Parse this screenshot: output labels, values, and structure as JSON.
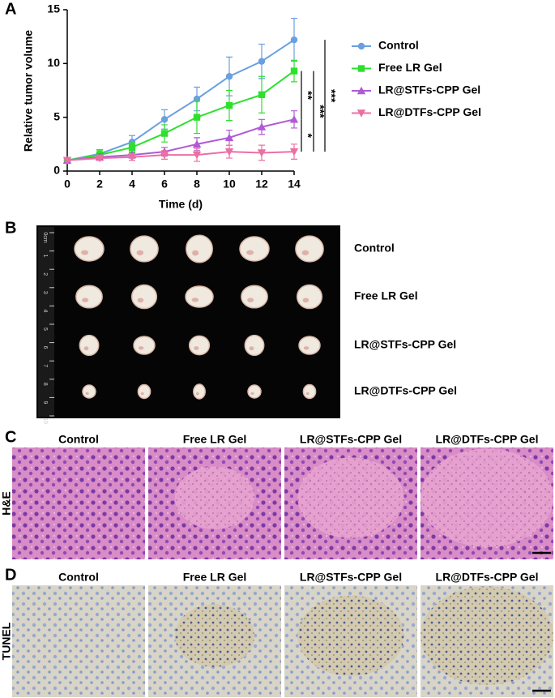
{
  "chart_data": {
    "type": "line",
    "panel": "A",
    "xlabel": "Time (d)",
    "ylabel": "Relative tumor volume",
    "x": [
      0,
      2,
      4,
      6,
      8,
      10,
      12,
      14
    ],
    "xlim": [
      0,
      14
    ],
    "xticks": [
      0,
      2,
      4,
      6,
      8,
      10,
      12,
      14
    ],
    "ylim": [
      0,
      15
    ],
    "yticks": [
      0,
      5,
      10,
      15
    ],
    "series": [
      {
        "name": "Control",
        "color": "#6a9fe0",
        "marker": "circle",
        "values": [
          1,
          1.6,
          2.7,
          4.8,
          6.7,
          8.8,
          10.2,
          12.2
        ],
        "errors": [
          0.1,
          0.4,
          0.6,
          0.9,
          1.1,
          1.8,
          1.6,
          2.0
        ]
      },
      {
        "name": "Free LR Gel",
        "color": "#2ee02e",
        "marker": "square",
        "values": [
          1,
          1.5,
          2.2,
          3.5,
          5.0,
          6.1,
          7.1,
          9.3
        ],
        "errors": [
          0.1,
          0.4,
          0.5,
          0.8,
          1.5,
          1.4,
          1.7,
          1.0
        ]
      },
      {
        "name": "LR@STFs-CPP Gel",
        "color": "#b05ad6",
        "marker": "triangle-up",
        "values": [
          1,
          1.3,
          1.5,
          1.8,
          2.5,
          3.1,
          4.1,
          4.8
        ],
        "errors": [
          0.1,
          0.3,
          0.3,
          0.4,
          0.6,
          0.7,
          0.7,
          0.8
        ]
      },
      {
        "name": "LR@DTFs-CPP Gel",
        "color": "#ec6fa4",
        "marker": "triangle-down",
        "values": [
          1,
          1.2,
          1.3,
          1.5,
          1.5,
          1.8,
          1.7,
          1.8
        ],
        "errors": [
          0.1,
          0.2,
          0.3,
          0.4,
          0.6,
          0.6,
          0.7,
          0.7
        ]
      }
    ],
    "annotations": [
      {
        "text": "**"
      },
      {
        "text": "*"
      },
      {
        "text": "***"
      },
      {
        "text": "***"
      }
    ]
  },
  "photo": {
    "panel": "B",
    "ruler": [
      "0cm",
      "1",
      "2",
      "3",
      "4",
      "5",
      "6",
      "7",
      "8",
      "9",
      "10"
    ],
    "rows": [
      "Control",
      "Free LR Gel",
      "LR@STFs-CPP Gel",
      "LR@DTFs-CPP Gel"
    ]
  },
  "histology": [
    {
      "panel": "C",
      "stain": "H&E",
      "columns": [
        "Control",
        "Free LR Gel",
        "LR@STFs-CPP Gel",
        "LR@DTFs-CPP Gel"
      ]
    },
    {
      "panel": "D",
      "stain": "TUNEL",
      "columns": [
        "Control",
        "Free LR Gel",
        "LR@STFs-CPP Gel",
        "LR@DTFs-CPP Gel"
      ]
    }
  ]
}
